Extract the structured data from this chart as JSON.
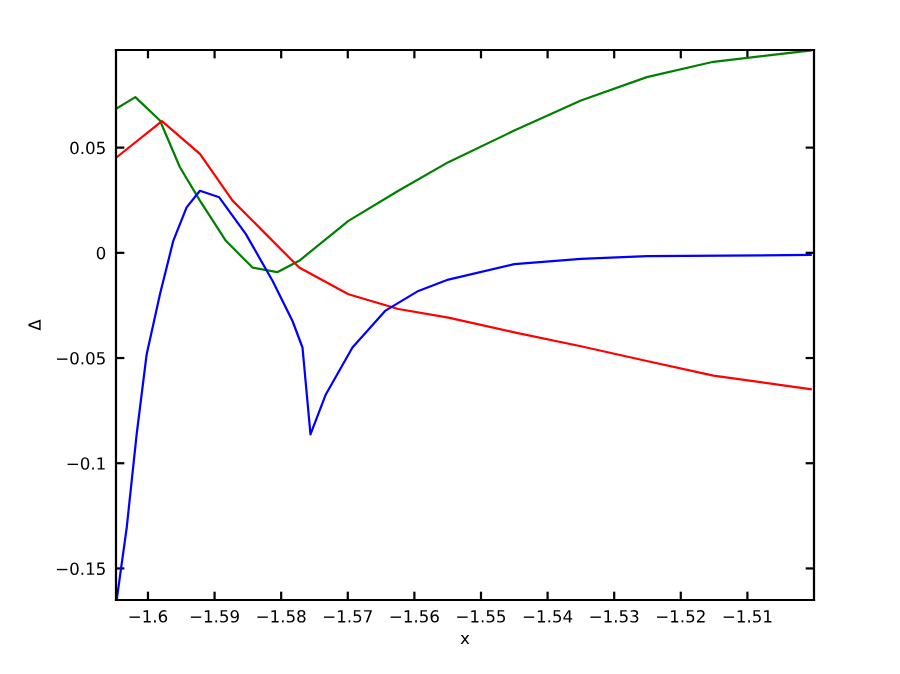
{
  "chart_data": {
    "type": "line",
    "xlabel": "x",
    "ylabel": "Δ",
    "xlim": [
      -1.6048,
      -1.5
    ],
    "ylim": [
      -0.165,
      0.0964
    ],
    "xticks": [
      {
        "value": -1.6,
        "label": "−1.6"
      },
      {
        "value": -1.59,
        "label": "−1.59"
      },
      {
        "value": -1.58,
        "label": "−1.58"
      },
      {
        "value": -1.57,
        "label": "−1.57"
      },
      {
        "value": -1.56,
        "label": "−1.56"
      },
      {
        "value": -1.55,
        "label": "−1.55"
      },
      {
        "value": -1.54,
        "label": "−1.54"
      },
      {
        "value": -1.53,
        "label": "−1.53"
      },
      {
        "value": -1.52,
        "label": "−1.52"
      },
      {
        "value": -1.51,
        "label": "−1.51"
      }
    ],
    "yticks": [
      {
        "value": -0.15,
        "label": "−0.15"
      },
      {
        "value": -0.1,
        "label": "−0.1"
      },
      {
        "value": -0.05,
        "label": "−0.05"
      },
      0,
      0.05
    ],
    "grid": false,
    "legend": false,
    "marker": "none",
    "line_style": "solid",
    "series": [
      {
        "color": "#008000",
        "x": [
          -1.6047,
          -1.6019,
          -1.5982,
          -1.5952,
          -1.5922,
          -1.5883,
          -1.5843,
          -1.5806,
          -1.5773,
          -1.5699,
          -1.5624,
          -1.5549,
          -1.545,
          -1.535,
          -1.5251,
          -1.5151,
          -1.5005
        ],
        "values": [
          0.0686,
          0.074,
          0.0629,
          0.0407,
          0.0248,
          0.0057,
          -0.007,
          -0.0092,
          -0.0038,
          0.0152,
          0.0295,
          0.0431,
          0.0581,
          0.0724,
          0.0835,
          0.0908,
          0.0962
        ]
      },
      {
        "color": "#ff0000",
        "x": [
          -1.6047,
          -1.5979,
          -1.5922,
          -1.5873,
          -1.5823,
          -1.5773,
          -1.5699,
          -1.5624,
          -1.5549,
          -1.545,
          -1.535,
          -1.5251,
          -1.5151,
          -1.5005
        ],
        "values": [
          0.0454,
          0.0626,
          0.047,
          0.0248,
          0.0089,
          -0.007,
          -0.0197,
          -0.0267,
          -0.0308,
          -0.0378,
          -0.0444,
          -0.0514,
          -0.0584,
          -0.0648
        ]
      },
      {
        "color": "#0000ff",
        "x": [
          -1.6047,
          -1.6032,
          -1.6017,
          -1.6002,
          -1.5982,
          -1.5962,
          -1.5942,
          -1.5922,
          -1.5893,
          -1.5853,
          -1.5813,
          -1.5783,
          -1.5768,
          -1.5756,
          -1.5733,
          -1.5693,
          -1.5644,
          -1.5594,
          -1.5549,
          -1.545,
          -1.535,
          -1.5251,
          -1.5005
        ],
        "values": [
          -0.165,
          -0.1308,
          -0.0863,
          -0.0483,
          -0.0197,
          0.0057,
          0.0216,
          0.0295,
          0.0264,
          0.0089,
          -0.0133,
          -0.0324,
          -0.045,
          -0.0863,
          -0.0673,
          -0.045,
          -0.0276,
          -0.0181,
          -0.0127,
          -0.0054,
          -0.0029,
          -0.0016,
          -0.001
        ]
      }
    ]
  }
}
